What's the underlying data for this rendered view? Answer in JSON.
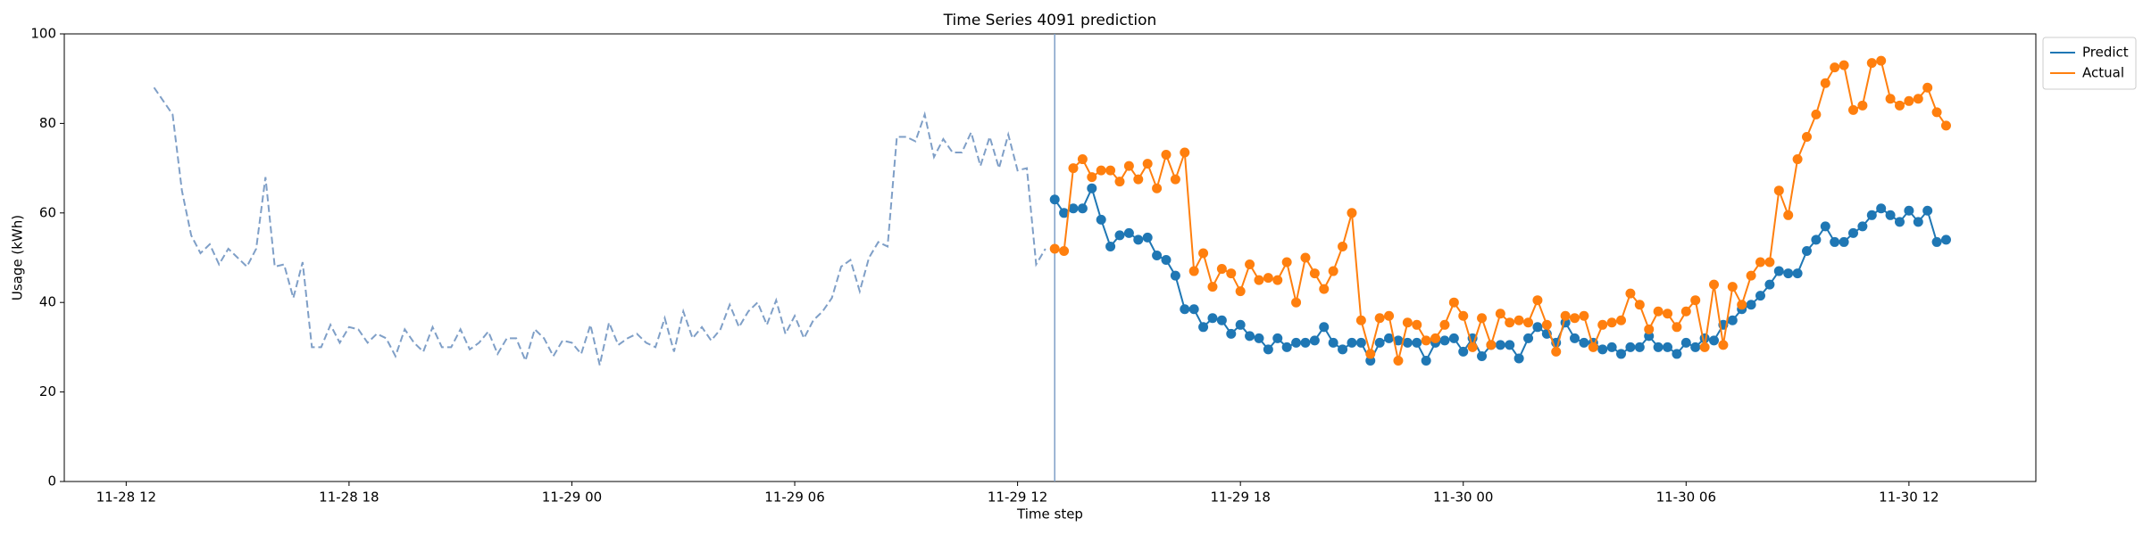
{
  "chart_data": {
    "type": "line",
    "title": "Time Series 4091 prediction",
    "x_label": "Time step",
    "y_label": "Usage (kWh)",
    "x": [
      "11-28 12:45",
      "11-28 13:00",
      "11-28 13:15",
      "11-28 13:30",
      "11-28 13:45",
      "11-28 14:00",
      "11-28 14:15",
      "11-28 14:30",
      "11-28 14:45",
      "11-28 15:00",
      "11-28 15:15",
      "11-28 15:30",
      "11-28 15:45",
      "11-28 16:00",
      "11-28 16:15",
      "11-28 16:30",
      "11-28 16:45",
      "11-28 17:00",
      "11-28 17:15",
      "11-28 17:30",
      "11-28 17:45",
      "11-28 18:00",
      "11-28 18:15",
      "11-28 18:30",
      "11-28 18:45",
      "11-28 19:00",
      "11-28 19:15",
      "11-28 19:30",
      "11-28 19:45",
      "11-28 20:00",
      "11-28 20:15",
      "11-28 20:30",
      "11-28 20:45",
      "11-28 21:00",
      "11-28 21:15",
      "11-28 21:30",
      "11-28 21:45",
      "11-28 22:00",
      "11-28 22:15",
      "11-28 22:30",
      "11-28 22:45",
      "11-28 23:00",
      "11-28 23:15",
      "11-28 23:30",
      "11-28 23:45",
      "11-29 00:00",
      "11-29 00:15",
      "11-29 00:30",
      "11-29 00:45",
      "11-29 01:00",
      "11-29 01:15",
      "11-29 01:30",
      "11-29 01:45",
      "11-29 02:00",
      "11-29 02:15",
      "11-29 02:30",
      "11-29 02:45",
      "11-29 03:00",
      "11-29 03:15",
      "11-29 03:30",
      "11-29 03:45",
      "11-29 04:00",
      "11-29 04:15",
      "11-29 04:30",
      "11-29 04:45",
      "11-29 05:00",
      "11-29 05:15",
      "11-29 05:30",
      "11-29 05:45",
      "11-29 06:00",
      "11-29 06:15",
      "11-29 06:30",
      "11-29 06:45",
      "11-29 07:00",
      "11-29 07:15",
      "11-29 07:30",
      "11-29 07:45",
      "11-29 08:00",
      "11-29 08:15",
      "11-29 08:30",
      "11-29 08:45",
      "11-29 09:00",
      "11-29 09:15",
      "11-29 09:30",
      "11-29 09:45",
      "11-29 10:00",
      "11-29 10:15",
      "11-29 10:30",
      "11-29 10:45",
      "11-29 11:00",
      "11-29 11:15",
      "11-29 11:30",
      "11-29 11:45",
      "11-29 12:00",
      "11-29 12:15",
      "11-29 12:30",
      "11-29 12:45",
      "11-29 13:00",
      "11-29 13:15",
      "11-29 13:30",
      "11-29 13:45",
      "11-29 14:00",
      "11-29 14:15",
      "11-29 14:30",
      "11-29 14:45",
      "11-29 15:00",
      "11-29 15:15",
      "11-29 15:30",
      "11-29 15:45",
      "11-29 16:00",
      "11-29 16:15",
      "11-29 16:30",
      "11-29 16:45",
      "11-29 17:00",
      "11-29 17:15",
      "11-29 17:30",
      "11-29 17:45",
      "11-29 18:00",
      "11-29 18:15",
      "11-29 18:30",
      "11-29 18:45",
      "11-29 19:00",
      "11-29 19:15",
      "11-29 19:30",
      "11-29 19:45",
      "11-29 20:00",
      "11-29 20:15",
      "11-29 20:30",
      "11-29 20:45",
      "11-29 21:00",
      "11-29 21:15",
      "11-29 21:30",
      "11-29 21:45",
      "11-29 22:00",
      "11-29 22:15",
      "11-29 22:30",
      "11-29 22:45",
      "11-29 23:00",
      "11-29 23:15",
      "11-29 23:30",
      "11-29 23:45",
      "11-30 00:00",
      "11-30 00:15",
      "11-30 00:30",
      "11-30 00:45",
      "11-30 01:00",
      "11-30 01:15",
      "11-30 01:30",
      "11-30 01:45",
      "11-30 02:00",
      "11-30 02:15",
      "11-30 02:30",
      "11-30 02:45",
      "11-30 03:00",
      "11-30 03:15",
      "11-30 03:30",
      "11-30 03:45",
      "11-30 04:00",
      "11-30 04:15",
      "11-30 04:30",
      "11-30 04:45",
      "11-30 05:00",
      "11-30 05:15",
      "11-30 05:30",
      "11-30 05:45",
      "11-30 06:00",
      "11-30 06:15",
      "11-30 06:30",
      "11-30 06:45",
      "11-30 07:00",
      "11-30 07:15",
      "11-30 07:30",
      "11-30 07:45",
      "11-30 08:00",
      "11-30 08:15",
      "11-30 08:30",
      "11-30 08:45",
      "11-30 09:00",
      "11-30 09:15",
      "11-30 09:30",
      "11-30 09:45",
      "11-30 10:00",
      "11-30 10:15",
      "11-30 10:30",
      "11-30 10:45",
      "11-30 11:00",
      "11-30 11:15",
      "11-30 11:30",
      "11-30 11:45",
      "11-30 12:00",
      "11-30 12:15",
      "11-30 12:30",
      "11-30 12:45",
      "11-30 13:00"
    ],
    "series": [
      {
        "color": "#7f9fc7",
        "linestyle": "dashed",
        "marker": false,
        "values": [
          88,
          85,
          82,
          65,
          55,
          51,
          53,
          48.5,
          52,
          50,
          48,
          52,
          68,
          48,
          48.5,
          41,
          49,
          30,
          30,
          35,
          31,
          34.5,
          34,
          31,
          33,
          32,
          28,
          34,
          31,
          29,
          34.5,
          30,
          30,
          34,
          29.5,
          31,
          33.5,
          28.5,
          32,
          32,
          27,
          34,
          32,
          28,
          31.5,
          31,
          28.5,
          35,
          26,
          35.5,
          30.5,
          32,
          33,
          31,
          30,
          36.5,
          29,
          38,
          32,
          34.5,
          31.5,
          34,
          39.5,
          34.5,
          38,
          40,
          35,
          40.5,
          33,
          37,
          32,
          36,
          38,
          41,
          48,
          49.5,
          42.5,
          50,
          53.5,
          52.5,
          77,
          77,
          76,
          82,
          72.5,
          76.5,
          73.5,
          73.5,
          78,
          70.5,
          77,
          70,
          77.5,
          69.5,
          70,
          48.5,
          52,
          null,
          null,
          null,
          null,
          null,
          null,
          null,
          null,
          null,
          null,
          null,
          null,
          null,
          null,
          null,
          null,
          null,
          null,
          null,
          null,
          null,
          null,
          null,
          null,
          null,
          null,
          null,
          null,
          null,
          null,
          null,
          null,
          null,
          null,
          null,
          null,
          null,
          null,
          null,
          null,
          null,
          null,
          null,
          null,
          null,
          null,
          null,
          null,
          null,
          null,
          null,
          null,
          null,
          null,
          null,
          null,
          null,
          null,
          null,
          null,
          null,
          null,
          null,
          null,
          null,
          null,
          null,
          null,
          null,
          null,
          null,
          null,
          null,
          null,
          null,
          null,
          null,
          null,
          null,
          null,
          null,
          null,
          null,
          null,
          null,
          null,
          null,
          null,
          null,
          null,
          null,
          null,
          null,
          null,
          null,
          null,
          null
        ]
      },
      {
        "name": "Predict",
        "color": "#1f77b4",
        "linestyle": "solid",
        "marker": true,
        "values": [
          null,
          null,
          null,
          null,
          null,
          null,
          null,
          null,
          null,
          null,
          null,
          null,
          null,
          null,
          null,
          null,
          null,
          null,
          null,
          null,
          null,
          null,
          null,
          null,
          null,
          null,
          null,
          null,
          null,
          null,
          null,
          null,
          null,
          null,
          null,
          null,
          null,
          null,
          null,
          null,
          null,
          null,
          null,
          null,
          null,
          null,
          null,
          null,
          null,
          null,
          null,
          null,
          null,
          null,
          null,
          null,
          null,
          null,
          null,
          null,
          null,
          null,
          null,
          null,
          null,
          null,
          null,
          null,
          null,
          null,
          null,
          null,
          null,
          null,
          null,
          null,
          null,
          null,
          null,
          null,
          null,
          null,
          null,
          null,
          null,
          null,
          null,
          null,
          null,
          null,
          null,
          null,
          null,
          null,
          null,
          null,
          null,
          63,
          60,
          61,
          61,
          65.5,
          58.5,
          52.5,
          55,
          55.5,
          54,
          54.5,
          50.5,
          49.5,
          46,
          38.5,
          38.5,
          34.5,
          36.5,
          36,
          33,
          35,
          32.5,
          32,
          29.5,
          32,
          30,
          31,
          31,
          31.5,
          34.5,
          31,
          29.5,
          31,
          31,
          27,
          31,
          32,
          31.5,
          31,
          31,
          27,
          31,
          31.5,
          32,
          29,
          32,
          28,
          30.5,
          30.5,
          30.5,
          27.5,
          32,
          34.5,
          33,
          31,
          35.5,
          32,
          31,
          31,
          29.5,
          30,
          28.5,
          30,
          30,
          32.5,
          30,
          30,
          28.5,
          31,
          30,
          32,
          31.5,
          35,
          36,
          38.5,
          39.5,
          41.5,
          44,
          47,
          46.5,
          46.5,
          51.5,
          54,
          57,
          53.5,
          53.5,
          55.5,
          57,
          59.5,
          61,
          59.5,
          58,
          60.5,
          58,
          60.5,
          53.5,
          54
        ]
      },
      {
        "name": "Actual",
        "color": "#ff7f0e",
        "linestyle": "solid",
        "marker": true,
        "values": [
          null,
          null,
          null,
          null,
          null,
          null,
          null,
          null,
          null,
          null,
          null,
          null,
          null,
          null,
          null,
          null,
          null,
          null,
          null,
          null,
          null,
          null,
          null,
          null,
          null,
          null,
          null,
          null,
          null,
          null,
          null,
          null,
          null,
          null,
          null,
          null,
          null,
          null,
          null,
          null,
          null,
          null,
          null,
          null,
          null,
          null,
          null,
          null,
          null,
          null,
          null,
          null,
          null,
          null,
          null,
          null,
          null,
          null,
          null,
          null,
          null,
          null,
          null,
          null,
          null,
          null,
          null,
          null,
          null,
          null,
          null,
          null,
          null,
          null,
          null,
          null,
          null,
          null,
          null,
          null,
          null,
          null,
          null,
          null,
          null,
          null,
          null,
          null,
          null,
          null,
          null,
          null,
          null,
          null,
          null,
          null,
          null,
          52,
          51.5,
          70,
          72,
          68,
          69.5,
          69.5,
          67,
          70.5,
          67.5,
          71,
          65.5,
          73,
          67.5,
          73.5,
          47,
          51,
          43.5,
          47.5,
          46.5,
          42.5,
          48.5,
          45,
          45.5,
          45,
          49,
          40,
          50,
          46.5,
          43,
          47,
          52.5,
          60,
          36,
          28.5,
          36.5,
          37,
          27,
          35.5,
          35,
          31.5,
          32,
          35,
          40,
          37,
          30,
          36.5,
          30.5,
          37.5,
          35.5,
          36,
          35.5,
          40.5,
          35,
          29,
          37,
          36.5,
          37,
          30,
          35,
          35.5,
          36,
          42,
          39.5,
          34,
          38,
          37.5,
          34.5,
          38,
          40.5,
          30,
          44,
          30.5,
          43.5,
          39.5,
          46,
          49,
          49,
          65,
          59.5,
          72,
          77,
          82,
          89,
          92.5,
          93,
          83,
          84,
          93.5,
          94,
          85.5,
          84,
          85,
          85.5,
          88,
          82.5,
          79.5
        ]
      }
    ],
    "vlines": [
      "11-29 13:00"
    ],
    "xlim": [
      "11-28 10:20",
      "11-30 15:25"
    ],
    "xticks": [
      {
        "value": "11-28 12:00",
        "label": "11-28 12"
      },
      {
        "value": "11-28 18:00",
        "label": "11-28 18"
      },
      {
        "value": "11-29 00:00",
        "label": "11-29 00"
      },
      {
        "value": "11-29 06:00",
        "label": "11-29 06"
      },
      {
        "value": "11-29 12:00",
        "label": "11-29 12"
      },
      {
        "value": "11-29 18:00",
        "label": "11-29 18"
      },
      {
        "value": "11-30 00:00",
        "label": "11-30 00"
      },
      {
        "value": "11-30 06:00",
        "label": "11-30 06"
      },
      {
        "value": "11-30 12:00",
        "label": "11-30 12"
      }
    ],
    "ylim": [
      0,
      100
    ],
    "yticks": [
      0,
      20,
      40,
      60,
      80,
      100
    ],
    "grid": false,
    "legend": "upper right outside"
  }
}
